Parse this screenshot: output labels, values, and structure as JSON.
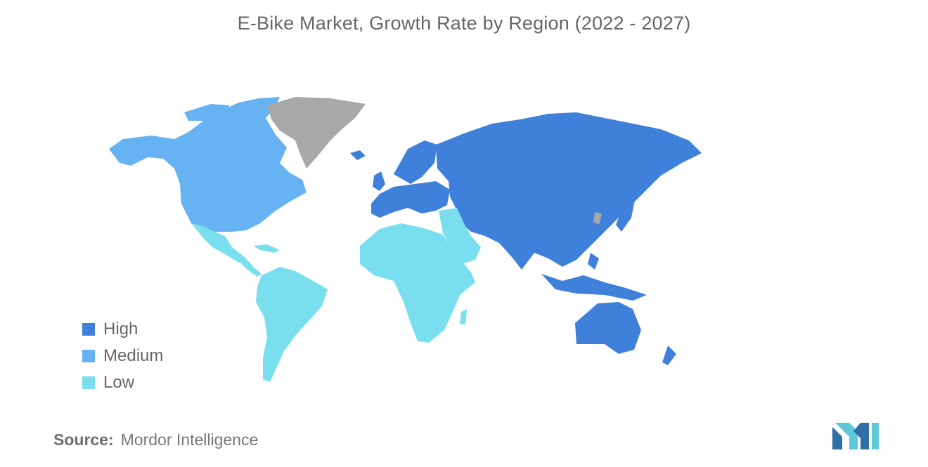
{
  "title": "E-Bike Market, Growth Rate by Region (2022 - 2027)",
  "legend": {
    "items": [
      {
        "label": "High",
        "color": "#3f80db"
      },
      {
        "label": "Medium",
        "color": "#66b2f3"
      },
      {
        "label": "Low",
        "color": "#79dfee"
      }
    ]
  },
  "no_data_color": "#a8a8a8",
  "regions": [
    {
      "name": "North America",
      "category": "Medium"
    },
    {
      "name": "Europe",
      "category": "High"
    },
    {
      "name": "Asia-Pacific",
      "category": "High"
    },
    {
      "name": "South America",
      "category": "Low"
    },
    {
      "name": "Middle East and Africa",
      "category": "Low"
    }
  ],
  "source": {
    "label": "Source:",
    "value": "Mordor Intelligence"
  },
  "logo_icon": "mordor-intelligence-logo-icon"
}
